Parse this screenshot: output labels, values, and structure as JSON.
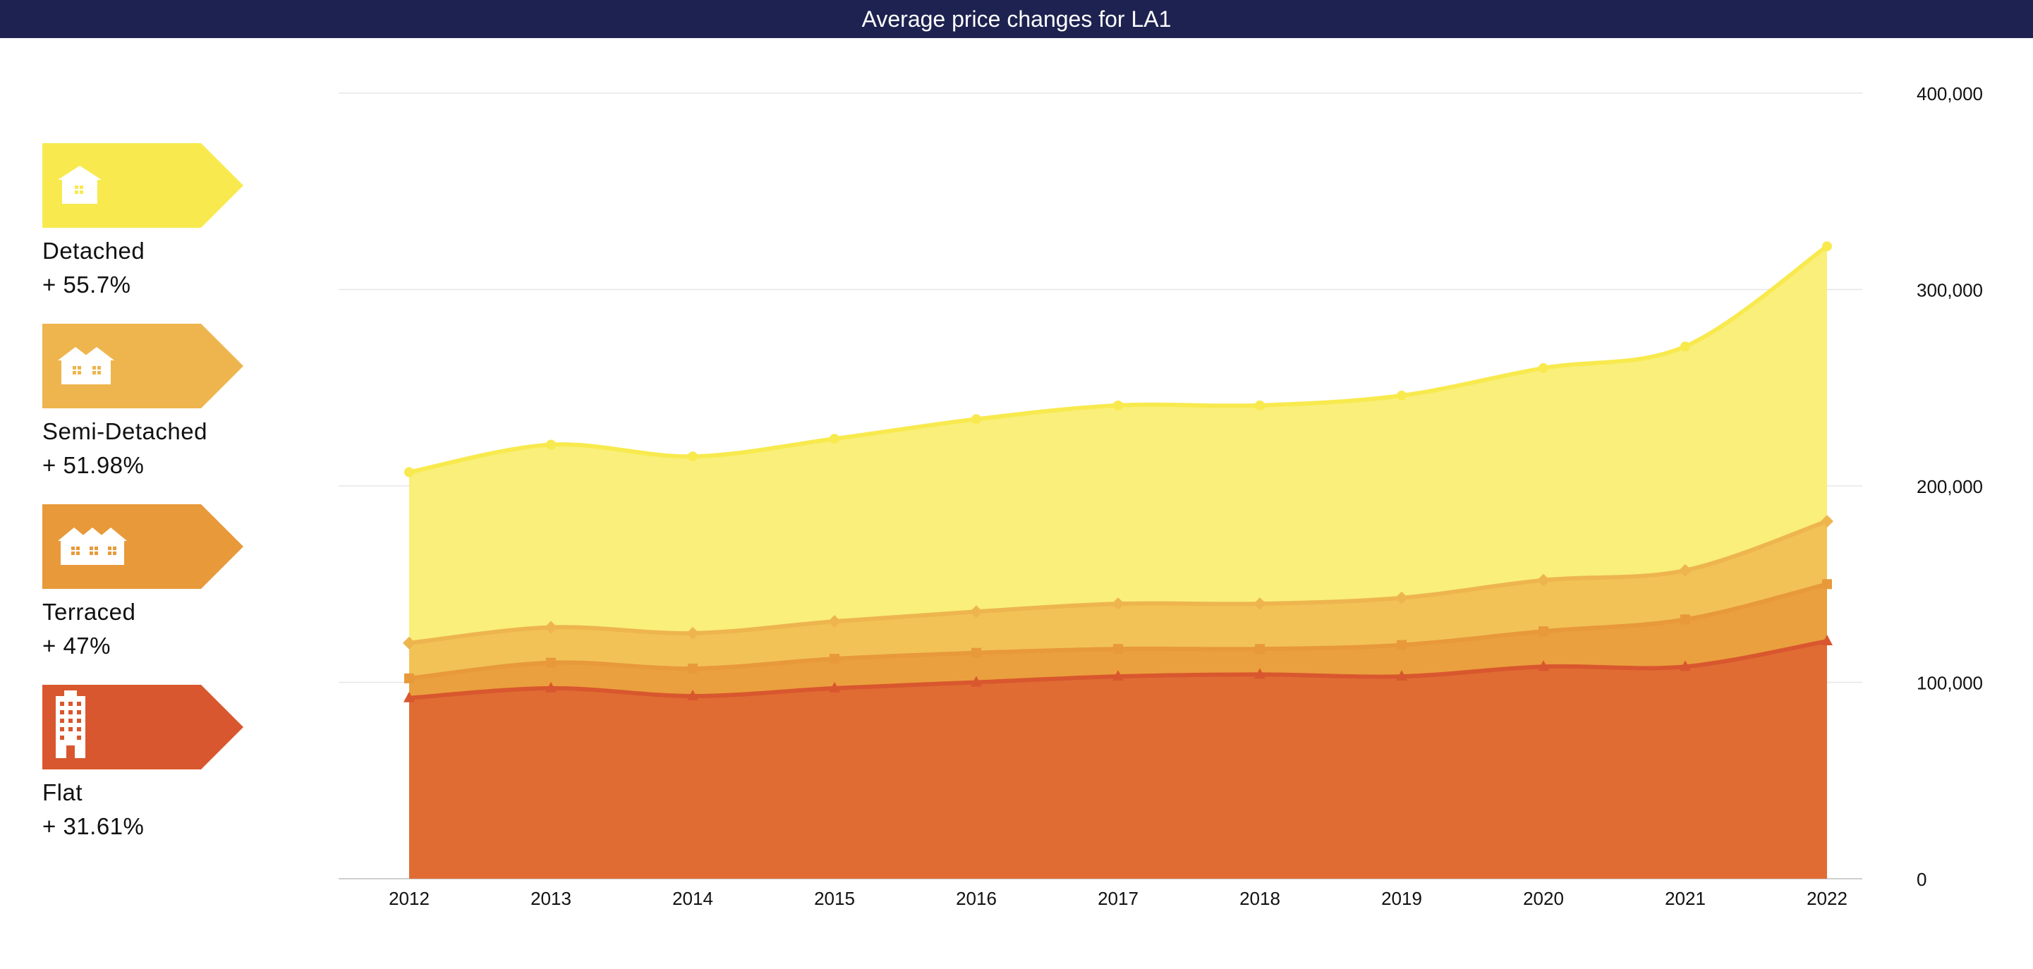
{
  "chart_data": {
    "type": "area",
    "title": "Average price changes for LA1",
    "categories": [
      "2012",
      "2013",
      "2014",
      "2015",
      "2016",
      "2017",
      "2018",
      "2019",
      "2020",
      "2021",
      "2022"
    ],
    "y_ticks": [
      "0",
      "100,000",
      "200,000",
      "300,000",
      "400,000"
    ],
    "ylim": [
      0,
      400000
    ],
    "y_tick_values": [
      0,
      100000,
      200000,
      300000,
      400000
    ],
    "series": [
      {
        "name": "Detached",
        "change": "+ 55.7%",
        "color": "#f8ea4e",
        "fill": "#f9ef7a",
        "marker": "circle",
        "values": [
          207000,
          221000,
          215000,
          224000,
          234000,
          241000,
          241000,
          246000,
          260000,
          271000,
          322000
        ]
      },
      {
        "name": "Semi-Detached",
        "change": "+ 51.98%",
        "color": "#eeb54e",
        "fill": "#f2c257",
        "marker": "diamond",
        "values": [
          120000,
          128000,
          125000,
          131000,
          136000,
          140000,
          140000,
          143000,
          152000,
          157000,
          182000
        ]
      },
      {
        "name": "Terraced",
        "change": "+ 47%",
        "color": "#e8993a",
        "fill": "#eaa03e",
        "marker": "square",
        "values": [
          102000,
          110000,
          107000,
          112000,
          115000,
          117000,
          117000,
          119000,
          126000,
          132000,
          150000
        ]
      },
      {
        "name": "Flat",
        "change": "+ 31.61%",
        "color": "#d9572e",
        "fill": "#e06c34",
        "marker": "triangle",
        "values": [
          92000,
          97000,
          93000,
          97000,
          100000,
          103000,
          104000,
          103000,
          108000,
          108000,
          121000
        ]
      }
    ]
  },
  "legend": [
    {
      "name": "Detached",
      "change": "+ 55.7%",
      "color": "#f8ea4e",
      "icon": "detached-house-icon"
    },
    {
      "name": "Semi-Detached",
      "change": "+ 51.98%",
      "color": "#eeb54e",
      "icon": "semi-detached-house-icon"
    },
    {
      "name": "Terraced",
      "change": "+ 47%",
      "color": "#e8993a",
      "icon": "terraced-houses-icon"
    },
    {
      "name": "Flat",
      "change": "+ 31.61%",
      "color": "#d9572e",
      "icon": "flat-building-icon"
    }
  ]
}
